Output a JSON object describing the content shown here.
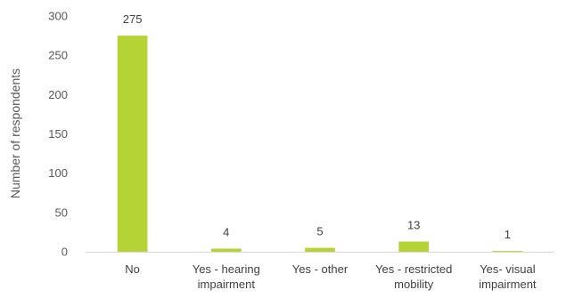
{
  "chart_data": {
    "type": "bar",
    "title": "",
    "xlabel": "",
    "ylabel": "Number of respondents",
    "ylim": [
      0,
      300
    ],
    "yticks": [
      0,
      50,
      100,
      150,
      200,
      250,
      300
    ],
    "categories": [
      [
        "No"
      ],
      [
        "Yes - hearing",
        "impairment"
      ],
      [
        "Yes - other"
      ],
      [
        "Yes - restricted",
        "mobility"
      ],
      [
        "Yes- visual",
        "impairment"
      ]
    ],
    "values": [
      275,
      4,
      5,
      13,
      1
    ],
    "data_labels": [
      "275",
      "4",
      "5",
      "13",
      "1"
    ],
    "grid": false,
    "legend": "none",
    "bar_color": "#b5d334",
    "axis_color": "#d9d9d9"
  }
}
